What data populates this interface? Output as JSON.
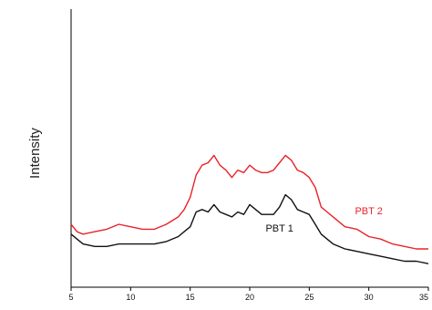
{
  "chart_data": {
    "type": "line",
    "title": "",
    "xlabel": "",
    "ylabel": "Intensity",
    "xlim": [
      5,
      35
    ],
    "ylim": [
      0,
      100
    ],
    "x_ticks": [
      5,
      10,
      15,
      20,
      25,
      30,
      35
    ],
    "x_tick_labels": [
      "5",
      "10",
      "15",
      "20",
      "25",
      "30",
      "35"
    ],
    "y_ticks_shown": false,
    "grid": false,
    "legend": "inline labels",
    "series": [
      {
        "name": "PBT 2",
        "color": "#e8232a",
        "x": [
          5,
          5.5,
          6,
          7,
          8,
          9,
          10,
          11,
          12,
          13,
          14,
          14.5,
          15,
          15.5,
          16,
          16.5,
          17,
          17.5,
          18,
          18.5,
          19,
          19.5,
          20,
          20.5,
          21,
          21.5,
          22,
          22.5,
          23,
          23.5,
          24,
          24.5,
          25,
          25.5,
          26,
          26.5,
          27,
          28,
          29,
          30,
          31,
          32,
          33,
          34,
          35
        ],
        "y": [
          20,
          17,
          16,
          17,
          18,
          20,
          19,
          18,
          18,
          20,
          23,
          26,
          31,
          40,
          44,
          45,
          48,
          44,
          42,
          39,
          42,
          41,
          44,
          42,
          41,
          41,
          42,
          45,
          48,
          46,
          42,
          41,
          39,
          35,
          27,
          25,
          23,
          19,
          18,
          15,
          14,
          12,
          11,
          10,
          10
        ]
      },
      {
        "name": "PBT 1",
        "color": "#111111",
        "x": [
          5,
          5.5,
          6,
          7,
          8,
          9,
          10,
          11,
          12,
          13,
          14,
          14.5,
          15,
          15.5,
          16,
          16.5,
          17,
          17.5,
          18,
          18.5,
          19,
          19.5,
          20,
          20.5,
          21,
          21.5,
          22,
          22.5,
          23,
          23.5,
          24,
          24.5,
          25,
          25.5,
          26,
          26.5,
          27,
          28,
          29,
          30,
          31,
          32,
          33,
          34,
          35
        ],
        "y": [
          16,
          14,
          12,
          11,
          11,
          12,
          12,
          12,
          12,
          13,
          15,
          17,
          19,
          25,
          26,
          25,
          28,
          25,
          24,
          23,
          25,
          24,
          28,
          26,
          24,
          24,
          24,
          27,
          32,
          30,
          26,
          25,
          24,
          20,
          16,
          14,
          12,
          10,
          9,
          8,
          7,
          6,
          5,
          5,
          4
        ]
      }
    ],
    "annotations": [
      {
        "text": "PBT 2",
        "x": 30,
        "y": 24,
        "color": "#e8232a"
      },
      {
        "text": "PBT 1",
        "x": 22.5,
        "y": 17,
        "color": "#111111"
      }
    ]
  }
}
